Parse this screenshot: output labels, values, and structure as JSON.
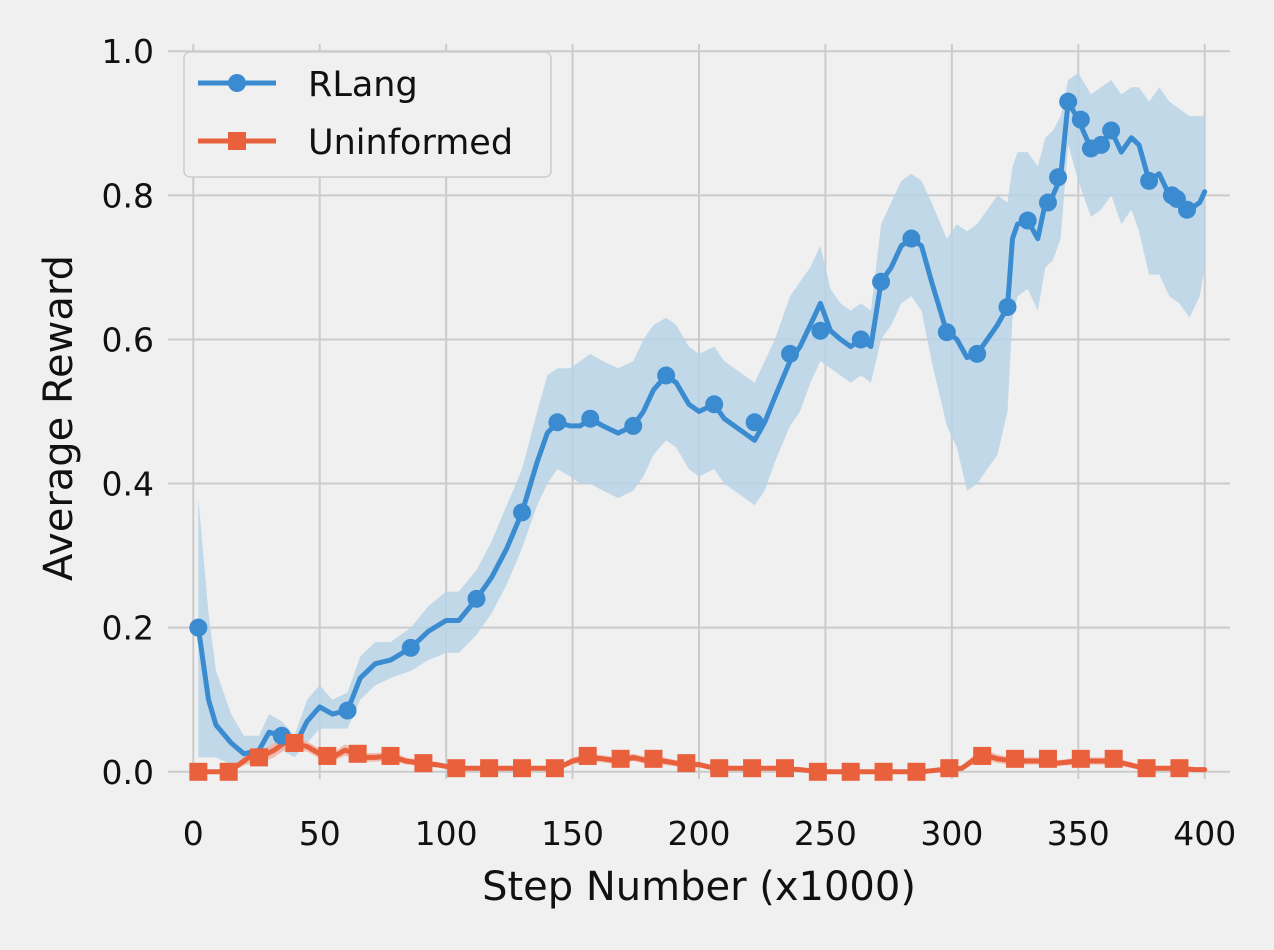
{
  "chart_data": {
    "type": "line",
    "title": "",
    "xlabel": "Step Number (x1000)",
    "ylabel": "Average Reward",
    "xlim": [
      -10,
      410
    ],
    "ylim": [
      -0.01,
      1.01
    ],
    "xticks": [
      0,
      50,
      100,
      150,
      200,
      250,
      300,
      350,
      400
    ],
    "yticks": [
      0.0,
      0.2,
      0.4,
      0.6,
      0.8,
      1.0
    ],
    "xtick_labels": [
      "0",
      "50",
      "100",
      "150",
      "200",
      "250",
      "300",
      "350",
      "400"
    ],
    "ytick_labels": [
      "0.0",
      "0.2",
      "0.4",
      "0.6",
      "0.8",
      "1.0"
    ],
    "grid": true,
    "legend_position": "top-left",
    "series": [
      {
        "name": "RLang",
        "color": "#3b8bd0",
        "band_color": "#b8d3e8",
        "marker": "circle",
        "x": [
          2,
          6,
          9,
          15,
          20,
          26,
          30,
          35,
          40,
          45,
          50,
          55,
          61,
          66,
          72,
          78,
          86,
          93,
          100,
          105,
          112,
          118,
          124,
          130,
          136,
          140,
          144,
          149,
          153,
          157,
          162,
          168,
          174,
          178,
          182,
          187,
          191,
          196,
          200,
          206,
          210,
          214,
          218,
          222,
          226,
          230,
          236,
          240,
          244,
          248,
          252,
          256,
          260,
          264,
          268,
          272,
          276,
          280,
          284,
          288,
          292,
          298,
          302,
          306,
          310,
          314,
          318,
          322,
          324,
          326,
          330,
          334,
          337,
          340,
          343,
          346,
          350,
          355,
          359,
          363,
          367,
          371,
          374,
          378,
          382,
          386,
          390,
          394,
          398,
          400
        ],
        "y": [
          0.2,
          0.1,
          0.065,
          0.04,
          0.025,
          0.03,
          0.055,
          0.05,
          0.035,
          0.07,
          0.09,
          0.08,
          0.085,
          0.13,
          0.15,
          0.155,
          0.172,
          0.195,
          0.21,
          0.21,
          0.24,
          0.27,
          0.31,
          0.36,
          0.43,
          0.47,
          0.485,
          0.48,
          0.48,
          0.49,
          0.48,
          0.47,
          0.48,
          0.5,
          0.53,
          0.55,
          0.54,
          0.51,
          0.5,
          0.51,
          0.49,
          0.48,
          0.47,
          0.46,
          0.485,
          0.52,
          0.57,
          0.59,
          0.62,
          0.65,
          0.612,
          0.6,
          0.59,
          0.6,
          0.59,
          0.68,
          0.7,
          0.73,
          0.74,
          0.73,
          0.68,
          0.61,
          0.6,
          0.575,
          0.58,
          0.6,
          0.62,
          0.645,
          0.74,
          0.76,
          0.765,
          0.74,
          0.79,
          0.8,
          0.825,
          0.93,
          0.905,
          0.865,
          0.87,
          0.89,
          0.86,
          0.88,
          0.87,
          0.82,
          0.83,
          0.8,
          0.795,
          0.78,
          0.79,
          0.805
        ],
        "lower": [
          0.02,
          0.02,
          0.02,
          0.01,
          0.01,
          0.01,
          0.02,
          0.03,
          0.02,
          0.04,
          0.06,
          0.06,
          0.06,
          0.1,
          0.12,
          0.13,
          0.14,
          0.155,
          0.165,
          0.165,
          0.19,
          0.22,
          0.26,
          0.31,
          0.37,
          0.4,
          0.42,
          0.41,
          0.4,
          0.4,
          0.39,
          0.38,
          0.39,
          0.41,
          0.44,
          0.46,
          0.45,
          0.42,
          0.41,
          0.42,
          0.4,
          0.39,
          0.38,
          0.37,
          0.39,
          0.43,
          0.48,
          0.5,
          0.54,
          0.57,
          0.56,
          0.55,
          0.54,
          0.55,
          0.54,
          0.6,
          0.62,
          0.65,
          0.66,
          0.64,
          0.57,
          0.48,
          0.45,
          0.39,
          0.4,
          0.42,
          0.44,
          0.5,
          0.63,
          0.66,
          0.67,
          0.64,
          0.7,
          0.71,
          0.74,
          0.87,
          0.82,
          0.77,
          0.78,
          0.8,
          0.76,
          0.78,
          0.75,
          0.69,
          0.69,
          0.66,
          0.65,
          0.63,
          0.66,
          0.7
        ],
        "upper": [
          0.38,
          0.22,
          0.14,
          0.08,
          0.05,
          0.05,
          0.08,
          0.07,
          0.05,
          0.1,
          0.12,
          0.1,
          0.11,
          0.16,
          0.18,
          0.18,
          0.2,
          0.23,
          0.25,
          0.25,
          0.28,
          0.32,
          0.37,
          0.42,
          0.5,
          0.55,
          0.56,
          0.56,
          0.57,
          0.58,
          0.57,
          0.56,
          0.57,
          0.6,
          0.62,
          0.63,
          0.62,
          0.59,
          0.58,
          0.59,
          0.57,
          0.56,
          0.55,
          0.54,
          0.57,
          0.6,
          0.66,
          0.68,
          0.7,
          0.73,
          0.67,
          0.65,
          0.64,
          0.65,
          0.64,
          0.76,
          0.79,
          0.82,
          0.83,
          0.82,
          0.79,
          0.74,
          0.76,
          0.75,
          0.76,
          0.78,
          0.8,
          0.79,
          0.84,
          0.86,
          0.86,
          0.84,
          0.88,
          0.89,
          0.91,
          0.96,
          0.97,
          0.94,
          0.95,
          0.96,
          0.94,
          0.95,
          0.95,
          0.93,
          0.95,
          0.93,
          0.92,
          0.91,
          0.91,
          0.91
        ],
        "markers_x": [
          2,
          35,
          61,
          86,
          112,
          130,
          144,
          157,
          174,
          187,
          206,
          222,
          236,
          248,
          264,
          272,
          284,
          298,
          310,
          322,
          330,
          338,
          342,
          346,
          351,
          355,
          359,
          363,
          378,
          387,
          389,
          393
        ],
        "markers_y": [
          0.2,
          0.05,
          0.085,
          0.172,
          0.24,
          0.36,
          0.485,
          0.49,
          0.48,
          0.55,
          0.51,
          0.485,
          0.58,
          0.612,
          0.6,
          0.68,
          0.74,
          0.61,
          0.58,
          0.645,
          0.765,
          0.79,
          0.825,
          0.93,
          0.905,
          0.865,
          0.87,
          0.89,
          0.82,
          0.8,
          0.795,
          0.78
        ]
      },
      {
        "name": "Uninformed",
        "color": "#e8603c",
        "band_color": "#f1b5a3",
        "marker": "square",
        "x": [
          2,
          8,
          14,
          18,
          22,
          26,
          32,
          36,
          40,
          45,
          50,
          55,
          60,
          64,
          68,
          72,
          78,
          84,
          90,
          96,
          104,
          112,
          120,
          128,
          136,
          144,
          150,
          156,
          162,
          168,
          174,
          180,
          186,
          194,
          200,
          206,
          214,
          222,
          230,
          240,
          248,
          256,
          264,
          272,
          280,
          288,
          296,
          304,
          310,
          314,
          318,
          324,
          330,
          336,
          342,
          350,
          358,
          364,
          370,
          376,
          384,
          390,
          396,
          400
        ],
        "y": [
          0.0,
          0.0,
          0.0,
          0.01,
          0.02,
          0.02,
          0.03,
          0.04,
          0.04,
          0.035,
          0.025,
          0.02,
          0.03,
          0.025,
          0.02,
          0.02,
          0.022,
          0.015,
          0.012,
          0.01,
          0.005,
          0.005,
          0.005,
          0.005,
          0.005,
          0.005,
          0.015,
          0.02,
          0.018,
          0.015,
          0.02,
          0.015,
          0.015,
          0.01,
          0.01,
          0.005,
          0.005,
          0.005,
          0.005,
          0.003,
          0.0,
          0.0,
          0.0,
          0.0,
          0.0,
          0.0,
          0.003,
          0.005,
          0.02,
          0.022,
          0.018,
          0.015,
          0.015,
          0.015,
          0.012,
          0.015,
          0.015,
          0.015,
          0.01,
          0.005,
          0.005,
          0.005,
          0.003,
          0.003
        ],
        "lower": [
          0.0,
          0.0,
          0.0,
          0.005,
          0.012,
          0.012,
          0.02,
          0.03,
          0.03,
          0.028,
          0.018,
          0.014,
          0.022,
          0.018,
          0.014,
          0.014,
          0.016,
          0.01,
          0.008,
          0.006,
          0.002,
          0.002,
          0.002,
          0.002,
          0.002,
          0.002,
          0.01,
          0.015,
          0.013,
          0.01,
          0.015,
          0.01,
          0.01,
          0.006,
          0.006,
          0.002,
          0.002,
          0.002,
          0.002,
          0.001,
          0.0,
          0.0,
          0.0,
          0.0,
          0.0,
          0.0,
          0.001,
          0.002,
          0.013,
          0.015,
          0.012,
          0.01,
          0.01,
          0.01,
          0.008,
          0.01,
          0.01,
          0.01,
          0.006,
          0.002,
          0.002,
          0.002,
          0.001,
          0.001
        ],
        "upper": [
          0.0,
          0.0,
          0.0,
          0.015,
          0.028,
          0.028,
          0.04,
          0.05,
          0.05,
          0.042,
          0.032,
          0.026,
          0.038,
          0.032,
          0.026,
          0.026,
          0.028,
          0.02,
          0.016,
          0.014,
          0.008,
          0.008,
          0.008,
          0.008,
          0.008,
          0.008,
          0.02,
          0.025,
          0.023,
          0.02,
          0.025,
          0.02,
          0.02,
          0.014,
          0.014,
          0.008,
          0.008,
          0.008,
          0.008,
          0.005,
          0.0,
          0.0,
          0.0,
          0.0,
          0.0,
          0.0,
          0.005,
          0.008,
          0.027,
          0.029,
          0.024,
          0.02,
          0.02,
          0.02,
          0.016,
          0.02,
          0.02,
          0.02,
          0.014,
          0.008,
          0.008,
          0.008,
          0.005,
          0.005
        ],
        "markers_x": [
          2,
          14,
          26,
          40,
          53,
          65,
          78,
          91,
          104,
          117,
          130,
          143,
          156,
          169,
          182,
          195,
          208,
          221,
          234,
          247,
          260,
          273,
          286,
          299,
          312,
          325,
          338,
          351,
          364,
          377,
          390
        ],
        "markers_y": [
          0.0,
          0.0,
          0.02,
          0.04,
          0.022,
          0.025,
          0.022,
          0.012,
          0.005,
          0.005,
          0.005,
          0.005,
          0.022,
          0.018,
          0.018,
          0.012,
          0.005,
          0.005,
          0.005,
          0.0,
          0.0,
          0.0,
          0.0,
          0.005,
          0.022,
          0.018,
          0.018,
          0.018,
          0.018,
          0.005,
          0.005
        ]
      }
    ]
  }
}
